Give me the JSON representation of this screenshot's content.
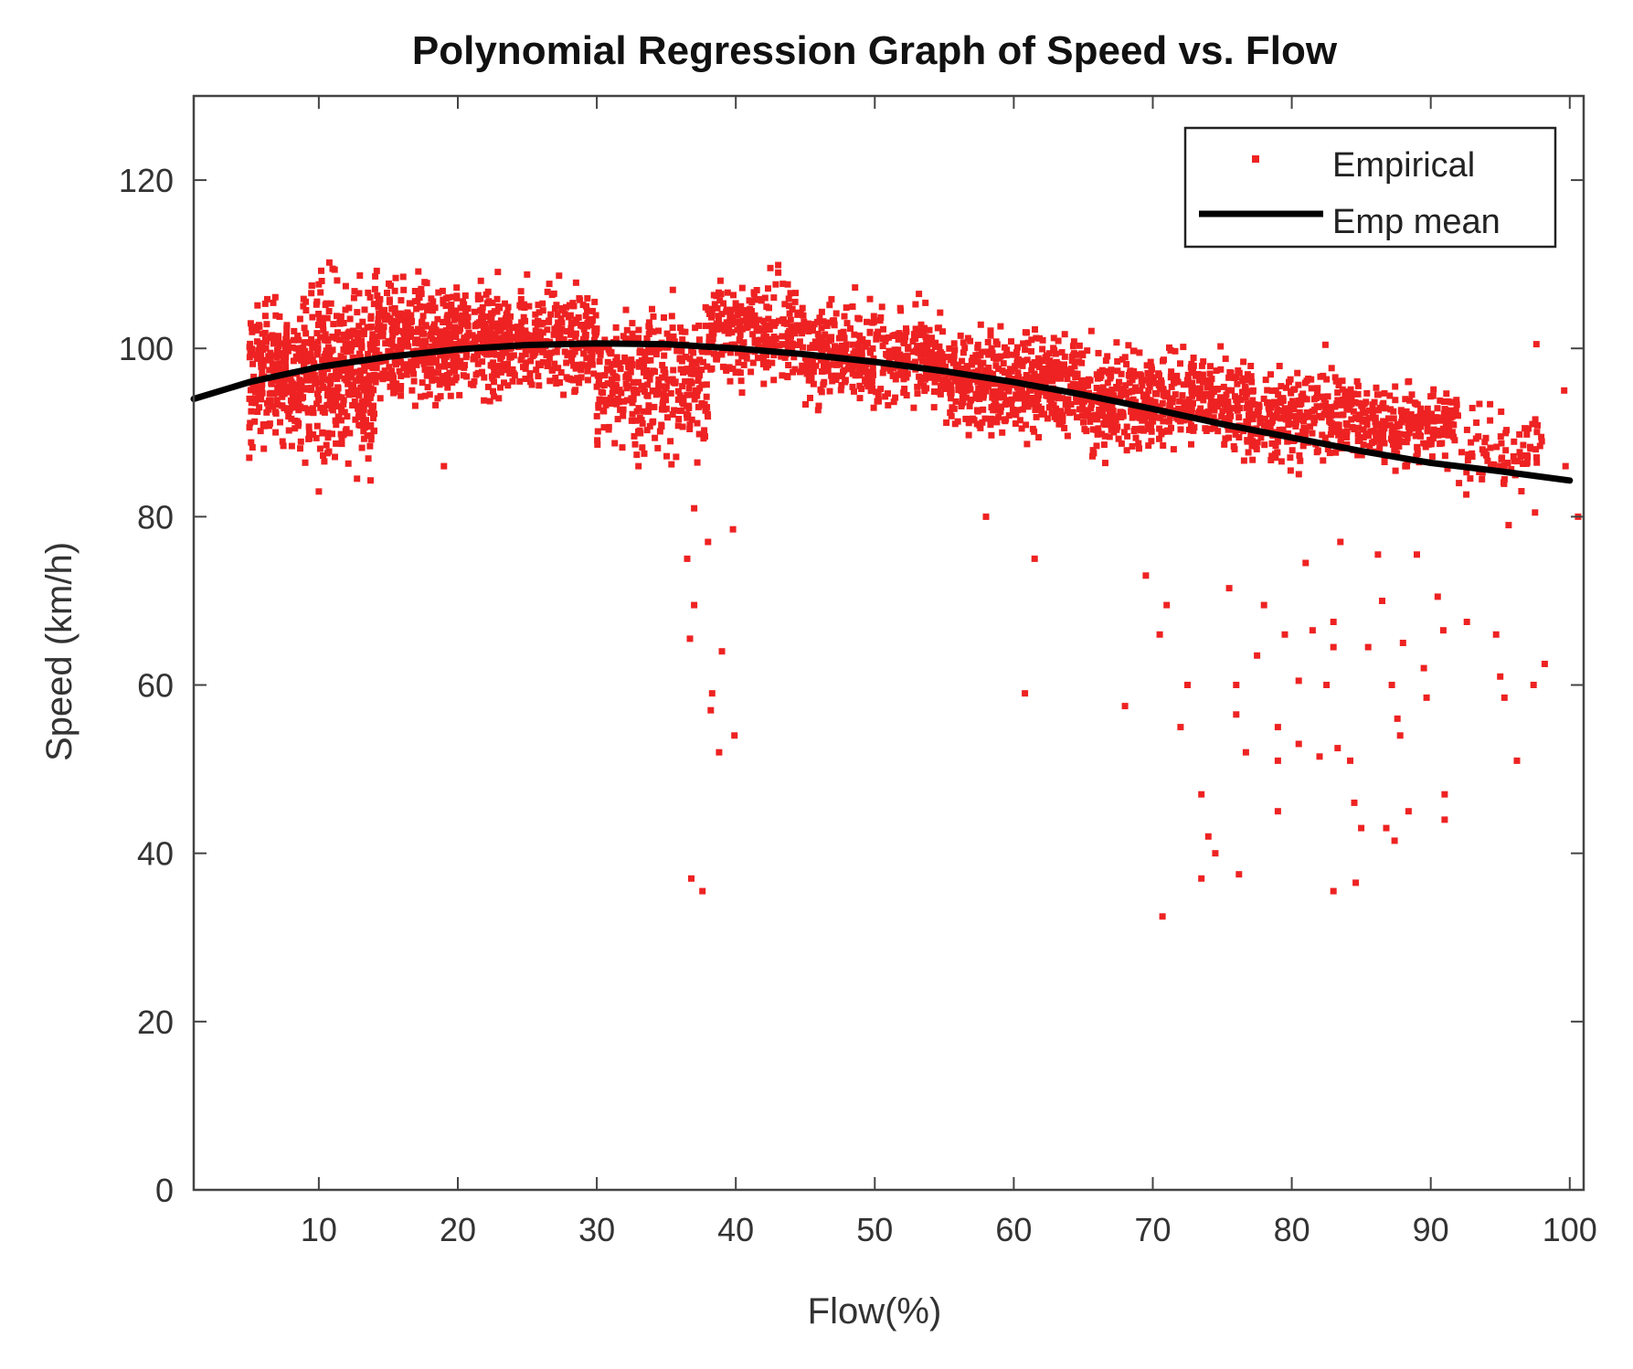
{
  "chart_data": {
    "type": "scatter",
    "title": "Polynomial Regression Graph of Speed vs. Flow",
    "xlabel": "Flow(%)",
    "ylabel": "Speed (km/h)",
    "xlim": [
      1,
      101
    ],
    "ylim": [
      0,
      130
    ],
    "xticks": [
      10,
      20,
      30,
      40,
      50,
      60,
      70,
      80,
      90,
      100
    ],
    "yticks": [
      0,
      20,
      40,
      60,
      80,
      100,
      120
    ],
    "grid": false,
    "legend_position": "top-right",
    "colors": {
      "empirical": "#ee2222",
      "mean": "#000000",
      "axis": "#444444"
    },
    "series": [
      {
        "name": "Empirical",
        "kind": "scatter",
        "cluster_bands": [
          {
            "x": [
              5,
              9
            ],
            "y_center": 97,
            "y_spread": 7,
            "count": 260
          },
          {
            "x": [
              9,
              14
            ],
            "y_center": 97,
            "y_spread": 9,
            "count": 420
          },
          {
            "x": [
              14,
              20
            ],
            "y_center": 101,
            "y_spread": 6,
            "count": 380
          },
          {
            "x": [
              20,
              30
            ],
            "y_center": 101,
            "y_spread": 5,
            "count": 520
          },
          {
            "x": [
              30,
              38
            ],
            "y_center": 96,
            "y_spread": 7,
            "count": 360
          },
          {
            "x": [
              38,
              45
            ],
            "y_center": 102,
            "y_spread": 5,
            "count": 280
          },
          {
            "x": [
              45,
              55
            ],
            "y_center": 99,
            "y_spread": 5,
            "count": 420
          },
          {
            "x": [
              55,
              65
            ],
            "y_center": 96,
            "y_spread": 5,
            "count": 480
          },
          {
            "x": [
              65,
              75
            ],
            "y_center": 94,
            "y_spread": 5,
            "count": 440
          },
          {
            "x": [
              75,
              85
            ],
            "y_center": 92,
            "y_spread": 5,
            "count": 360
          },
          {
            "x": [
              85,
              92
            ],
            "y_center": 91,
            "y_spread": 4,
            "count": 240
          },
          {
            "x": [
              92,
              98
            ],
            "y_center": 88,
            "y_spread": 4,
            "count": 80
          }
        ],
        "outliers": [
          [
            5,
            87
          ],
          [
            10,
            83
          ],
          [
            19,
            86
          ],
          [
            33,
            86
          ],
          [
            37,
            81
          ],
          [
            36.5,
            75
          ],
          [
            37,
            69.5
          ],
          [
            36.7,
            65.5
          ],
          [
            38,
            77
          ],
          [
            39.8,
            78.5
          ],
          [
            39,
            64
          ],
          [
            38.3,
            59
          ],
          [
            38.2,
            57
          ],
          [
            38.8,
            52
          ],
          [
            39.9,
            54
          ],
          [
            36.8,
            37
          ],
          [
            37.6,
            35.5
          ],
          [
            58,
            80
          ],
          [
            61.5,
            75
          ],
          [
            60.8,
            59
          ],
          [
            68,
            57.5
          ],
          [
            69.5,
            73
          ],
          [
            70.5,
            66
          ],
          [
            71,
            69.5
          ],
          [
            70.7,
            32.5
          ],
          [
            72.5,
            60
          ],
          [
            72,
            55
          ],
          [
            73.5,
            47
          ],
          [
            74,
            42
          ],
          [
            73.5,
            37
          ],
          [
            74.5,
            40
          ],
          [
            75.5,
            71.5
          ],
          [
            76,
            60
          ],
          [
            76,
            56.5
          ],
          [
            76.7,
            52
          ],
          [
            76.2,
            37.5
          ],
          [
            77.5,
            63.5
          ],
          [
            78,
            69.5
          ],
          [
            79,
            55
          ],
          [
            79,
            51
          ],
          [
            79,
            45
          ],
          [
            79.5,
            66
          ],
          [
            80.5,
            60.5
          ],
          [
            81,
            74.5
          ],
          [
            81.5,
            66.5
          ],
          [
            80.5,
            53
          ],
          [
            82,
            51.5
          ],
          [
            82.5,
            60
          ],
          [
            83,
            64.5
          ],
          [
            83,
            67.5
          ],
          [
            83.5,
            77
          ],
          [
            83.3,
            52.5
          ],
          [
            84.2,
            51
          ],
          [
            84.5,
            46
          ],
          [
            85,
            43
          ],
          [
            84.6,
            36.5
          ],
          [
            83,
            35.5
          ],
          [
            85.5,
            64.5
          ],
          [
            86.2,
            75.5
          ],
          [
            86.5,
            70
          ],
          [
            86.8,
            43
          ],
          [
            87.2,
            60
          ],
          [
            87.6,
            56
          ],
          [
            87.8,
            54
          ],
          [
            87.4,
            41.5
          ],
          [
            88.4,
            45
          ],
          [
            88,
            65
          ],
          [
            89,
            75.5
          ],
          [
            89.5,
            62
          ],
          [
            89.7,
            58.5
          ],
          [
            90.5,
            70.5
          ],
          [
            91,
            47
          ],
          [
            91,
            44
          ],
          [
            90.9,
            66.5
          ],
          [
            92.6,
            67.5
          ],
          [
            94.7,
            66
          ],
          [
            95,
            61
          ],
          [
            95.3,
            58.5
          ],
          [
            96.2,
            51
          ],
          [
            97.4,
            60
          ],
          [
            98.2,
            62.5
          ],
          [
            99.7,
            86
          ],
          [
            100.6,
            80
          ],
          [
            99.6,
            95
          ],
          [
            97.6,
            100.5
          ],
          [
            97.5,
            80.5
          ],
          [
            95.6,
            79
          ]
        ]
      },
      {
        "name": "Emp mean",
        "kind": "line",
        "x": [
          1,
          5,
          10,
          15,
          20,
          25,
          30,
          35,
          40,
          45,
          50,
          55,
          60,
          65,
          70,
          75,
          80,
          85,
          90,
          95,
          100
        ],
        "y": [
          94,
          96,
          97.8,
          99,
          99.9,
          100.4,
          100.6,
          100.5,
          100,
          99.3,
          98.4,
          97.3,
          96,
          94.5,
          92.8,
          91,
          89.4,
          87.8,
          86.4,
          85.4,
          84.3
        ]
      }
    ]
  }
}
